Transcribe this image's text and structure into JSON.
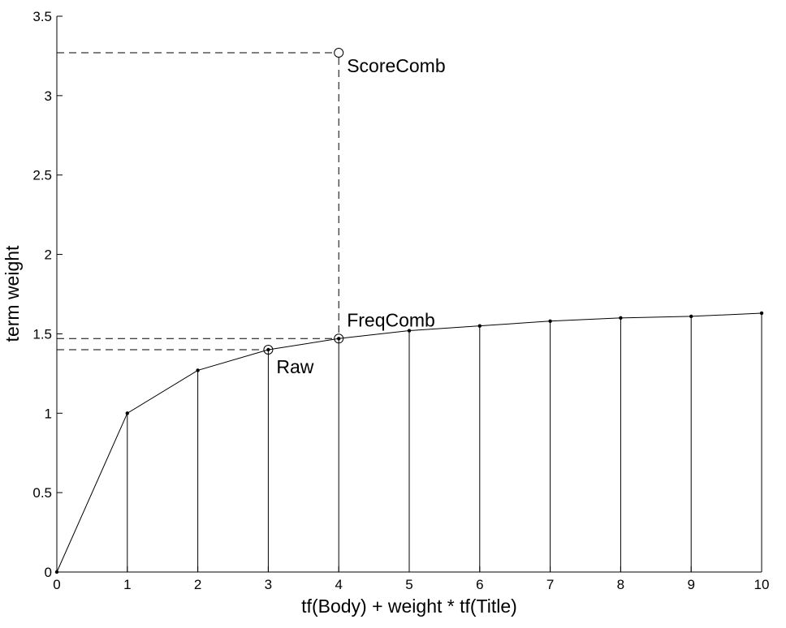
{
  "chart_data": {
    "type": "line",
    "xlabel": "tf(Body) + weight * tf(Title)",
    "ylabel": "term weight",
    "xlim": [
      0,
      10
    ],
    "ylim": [
      0,
      3.5
    ],
    "xticks": [
      "0",
      "1",
      "2",
      "3",
      "4",
      "5",
      "6",
      "7",
      "8",
      "9",
      "10"
    ],
    "yticks": [
      "0",
      "0.5",
      "1",
      "1.5",
      "2",
      "2.5",
      "3",
      "3.5"
    ],
    "grid": false,
    "series": [
      {
        "x": [
          0,
          1,
          2,
          3,
          4,
          5,
          6,
          7,
          8,
          9,
          10
        ],
        "y": [
          0,
          1.0,
          1.27,
          1.4,
          1.47,
          1.52,
          1.55,
          1.58,
          1.6,
          1.61,
          1.63
        ],
        "style": "solid line with dot markers and vertical stems to the x-axis"
      }
    ],
    "annotations": [
      {
        "label": "Raw",
        "x": 3,
        "y": 1.4,
        "marker": "open circle",
        "guide": "dashed horizontal line to y-axis"
      },
      {
        "label": "FreqComb",
        "x": 4,
        "y": 1.47,
        "marker": "open circle",
        "guide": "dashed horizontal line to y-axis"
      },
      {
        "label": "ScoreComb",
        "x": 4,
        "y": 3.27,
        "marker": "open circle",
        "guide": "dashed horizontal line to y-axis and dashed vertical line down to FreqComb"
      }
    ]
  }
}
